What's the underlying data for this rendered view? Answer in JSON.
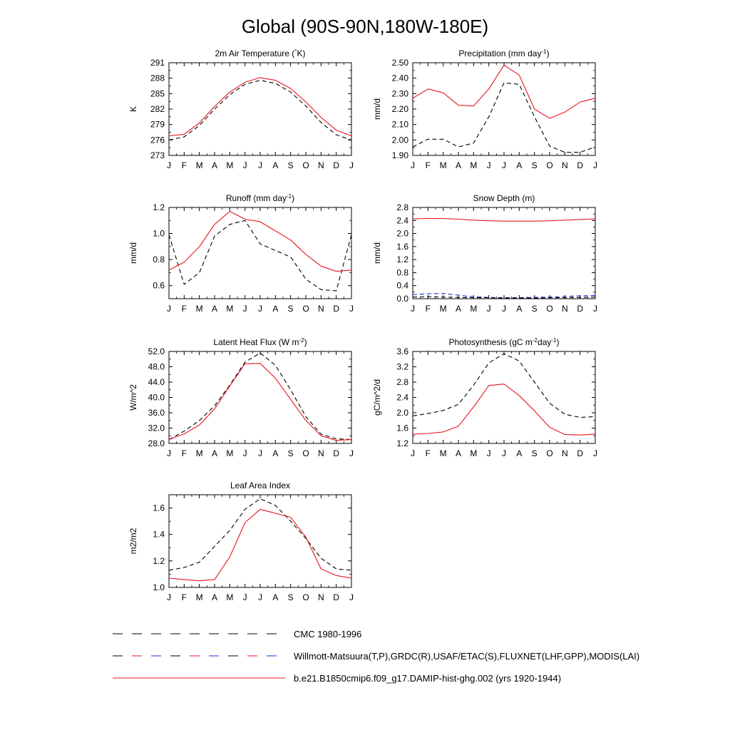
{
  "figure": {
    "title": "Global (90S-90N,180W-180E)"
  },
  "month_labels": [
    "J",
    "F",
    "M",
    "A",
    "M",
    "J",
    "J",
    "A",
    "S",
    "O",
    "N",
    "D",
    "J"
  ],
  "legend": [
    {
      "label": "CMC 1980-1996",
      "style": "dashed",
      "color": "#000000",
      "dash_colors": [
        "#000000"
      ]
    },
    {
      "label": "Willmott-Matsuura(T,P),GRDC(R),USAF/ETAC(S),FLUXNET(LHF,GPP),MODIS(LAI)",
      "style": "dashed",
      "color": "#000000",
      "dash_colors": [
        "#000000",
        "#e8141c",
        "#1f2fd6"
      ]
    },
    {
      "label": "b.e21.B1850cmip6.f09_g17.DAMIP-hist-ghg.002 (yrs 1920-1944)",
      "style": "solid",
      "color": "#e8141c"
    }
  ],
  "colors": {
    "model": "#e8141c",
    "obs": "#000000",
    "snow_cmc": "#1f2fd6"
  },
  "chart_data": [
    {
      "type": "line",
      "title": "2m Air Temperature (°K)",
      "ylabel": "K",
      "ylim": [
        273,
        291
      ],
      "yticks": [
        "273",
        "276",
        "279",
        "282",
        "285",
        "288",
        "291"
      ],
      "x": [
        "J",
        "F",
        "M",
        "A",
        "M",
        "J",
        "J",
        "A",
        "S",
        "O",
        "N",
        "D",
        "J"
      ],
      "series": [
        {
          "style": "dashed",
          "color": "#000000",
          "values": [
            276.0,
            276.6,
            278.8,
            282.0,
            284.8,
            286.8,
            287.6,
            287.0,
            285.3,
            282.6,
            279.4,
            277.0,
            276.0
          ]
        },
        {
          "style": "solid",
          "color": "#e8141c",
          "values": [
            276.8,
            277.1,
            279.3,
            282.5,
            285.3,
            287.2,
            288.1,
            287.6,
            286.0,
            283.4,
            280.4,
            277.9,
            276.8
          ]
        }
      ]
    },
    {
      "type": "line",
      "title": "Precipitation (mm day-1)",
      "ylabel": "mm/d",
      "ylim": [
        1.9,
        2.5
      ],
      "yticks": [
        "1.90",
        "2.00",
        "2.10",
        "2.20",
        "2.30",
        "2.40",
        "2.50"
      ],
      "x": [
        "J",
        "F",
        "M",
        "A",
        "M",
        "J",
        "J",
        "A",
        "S",
        "O",
        "N",
        "D",
        "J"
      ],
      "series": [
        {
          "style": "dashed",
          "color": "#000000",
          "values": [
            1.955,
            2.005,
            2.005,
            1.955,
            1.98,
            2.15,
            2.37,
            2.36,
            2.15,
            1.96,
            1.92,
            1.92,
            1.955
          ]
        },
        {
          "style": "solid",
          "color": "#e8141c",
          "values": [
            2.27,
            2.33,
            2.305,
            2.225,
            2.22,
            2.33,
            2.485,
            2.42,
            2.2,
            2.14,
            2.18,
            2.245,
            2.27
          ]
        }
      ]
    },
    {
      "type": "line",
      "title": "Runoff (mm day-1)",
      "ylabel": "mm/d",
      "ylim": [
        0.5,
        1.2
      ],
      "yticks": [
        "0.6",
        "0.8",
        "1.0",
        "1.2"
      ],
      "x": [
        "J",
        "F",
        "M",
        "A",
        "M",
        "J",
        "J",
        "A",
        "S",
        "O",
        "N",
        "D",
        "J"
      ],
      "series": [
        {
          "style": "dashed",
          "color": "#000000",
          "values": [
            0.99,
            0.61,
            0.7,
            0.98,
            1.07,
            1.1,
            0.92,
            0.87,
            0.82,
            0.65,
            0.57,
            0.56,
            0.99
          ]
        },
        {
          "style": "solid",
          "color": "#e8141c",
          "values": [
            0.72,
            0.78,
            0.9,
            1.07,
            1.17,
            1.11,
            1.09,
            1.02,
            0.95,
            0.84,
            0.75,
            0.71,
            0.72
          ]
        }
      ]
    },
    {
      "type": "line",
      "title": "Snow Depth (m)",
      "ylabel": "mm/d",
      "ylim": [
        0.0,
        2.8
      ],
      "yticks": [
        "0.0",
        "0.4",
        "0.8",
        "1.2",
        "1.6",
        "2.0",
        "2.4",
        "2.8"
      ],
      "x": [
        "J",
        "F",
        "M",
        "A",
        "M",
        "J",
        "J",
        "A",
        "S",
        "O",
        "N",
        "D",
        "J"
      ],
      "series": [
        {
          "style": "dashed",
          "color": "#1f2fd6",
          "values": [
            0.12,
            0.15,
            0.16,
            0.11,
            0.06,
            0.04,
            0.03,
            0.03,
            0.04,
            0.05,
            0.07,
            0.09,
            0.1
          ]
        },
        {
          "style": "dashed",
          "color": "#000000",
          "values": [
            0.05,
            0.06,
            0.05,
            0.04,
            0.03,
            0.03,
            0.02,
            0.02,
            0.02,
            0.03,
            0.03,
            0.04,
            0.05
          ]
        },
        {
          "style": "solid",
          "color": "#e8141c",
          "values": [
            2.45,
            2.46,
            2.46,
            2.44,
            2.41,
            2.39,
            2.38,
            2.38,
            2.38,
            2.39,
            2.41,
            2.43,
            2.45
          ]
        }
      ]
    },
    {
      "type": "line",
      "title": "Latent Heat Flux (W m-2)",
      "ylabel": "W/m^2",
      "ylim": [
        28.0,
        52.0
      ],
      "yticks": [
        "28.0",
        "32.0",
        "36.0",
        "40.0",
        "44.0",
        "48.0",
        "52.0"
      ],
      "x": [
        "J",
        "F",
        "M",
        "A",
        "M",
        "J",
        "J",
        "A",
        "S",
        "O",
        "N",
        "D",
        "J"
      ],
      "series": [
        {
          "style": "dashed",
          "color": "#000000",
          "values": [
            29.0,
            31.2,
            34.0,
            37.8,
            43.2,
            49.2,
            51.6,
            48.4,
            42.0,
            35.0,
            30.4,
            29.2,
            29.0
          ]
        },
        {
          "style": "solid",
          "color": "#e8141c",
          "values": [
            29.0,
            30.5,
            32.8,
            37.0,
            43.0,
            48.8,
            48.9,
            45.0,
            39.5,
            34.0,
            30.0,
            28.8,
            29.0
          ]
        }
      ]
    },
    {
      "type": "line",
      "title": "Photosynthesis (gC m-2day-1)",
      "ylabel": "gC/m^2/d",
      "ylim": [
        1.2,
        3.6
      ],
      "yticks": [
        "1.2",
        "1.6",
        "2.0",
        "2.4",
        "2.8",
        "3.2",
        "3.6"
      ],
      "x": [
        "J",
        "F",
        "M",
        "A",
        "M",
        "J",
        "J",
        "A",
        "S",
        "O",
        "N",
        "D",
        "J"
      ],
      "series": [
        {
          "style": "dashed",
          "color": "#000000",
          "values": [
            1.92,
            1.98,
            2.06,
            2.22,
            2.72,
            3.3,
            3.54,
            3.35,
            2.8,
            2.25,
            1.96,
            1.88,
            1.9
          ]
        },
        {
          "style": "solid",
          "color": "#e8141c",
          "values": [
            1.44,
            1.46,
            1.5,
            1.65,
            2.15,
            2.71,
            2.75,
            2.45,
            2.05,
            1.62,
            1.43,
            1.42,
            1.44
          ]
        }
      ]
    },
    {
      "type": "line",
      "title": "Leaf Area Index",
      "ylabel": "m2/m2",
      "ylim": [
        1.0,
        1.7
      ],
      "yticks": [
        "1.0",
        "1.2",
        "1.4",
        "1.6"
      ],
      "x": [
        "J",
        "F",
        "M",
        "A",
        "M",
        "J",
        "J",
        "A",
        "S",
        "O",
        "N",
        "D",
        "J"
      ],
      "series": [
        {
          "style": "dashed",
          "color": "#000000",
          "values": [
            1.13,
            1.15,
            1.19,
            1.31,
            1.43,
            1.59,
            1.67,
            1.62,
            1.5,
            1.37,
            1.22,
            1.14,
            1.13
          ]
        },
        {
          "style": "solid",
          "color": "#e8141c",
          "values": [
            1.07,
            1.06,
            1.05,
            1.06,
            1.23,
            1.49,
            1.59,
            1.56,
            1.53,
            1.38,
            1.14,
            1.09,
            1.07
          ]
        }
      ]
    }
  ]
}
